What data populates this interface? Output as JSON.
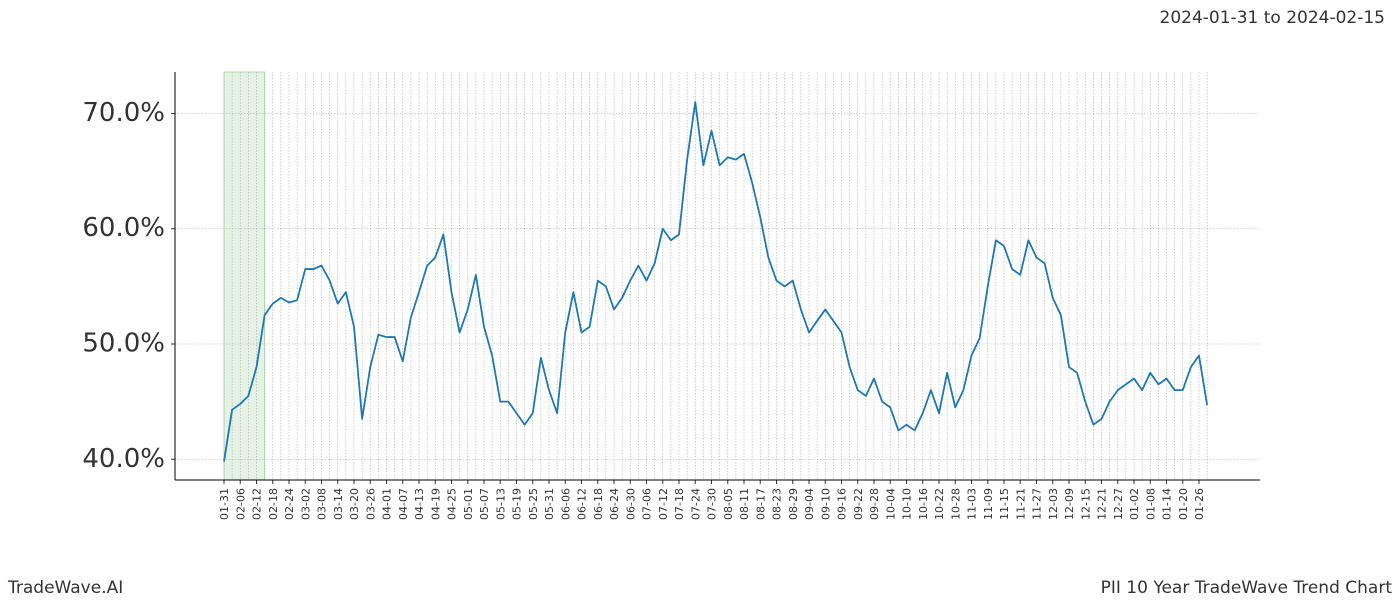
{
  "date_range": "2024-01-31 to 2024-02-15",
  "brand": "TradeWave.AI",
  "chart_title": "PII 10 Year TradeWave Trend Chart",
  "chart_data": {
    "type": "line",
    "categories": [
      "01-31",
      null,
      "02-06",
      null,
      "02-12",
      null,
      "02-18",
      null,
      "02-24",
      null,
      "03-02",
      null,
      "03-08",
      null,
      "03-14",
      null,
      "03-20",
      null,
      "03-26",
      null,
      "04-01",
      null,
      "04-07",
      null,
      "04-13",
      null,
      "04-19",
      null,
      "04-25",
      null,
      "05-01",
      null,
      "05-07",
      null,
      "05-13",
      null,
      "05-19",
      null,
      "05-25",
      null,
      "05-31",
      null,
      "06-06",
      null,
      "06-12",
      null,
      "06-18",
      null,
      "06-24",
      null,
      "06-30",
      null,
      "07-06",
      null,
      "07-12",
      null,
      "07-18",
      null,
      "07-24",
      null,
      "07-30",
      null,
      "08-05",
      null,
      "08-11",
      null,
      "08-17",
      null,
      "08-23",
      null,
      "08-29",
      null,
      "09-04",
      null,
      "09-10",
      null,
      "09-16",
      null,
      "09-22",
      null,
      "09-28",
      null,
      "10-04",
      null,
      "10-10",
      null,
      "10-16",
      null,
      "10-22",
      null,
      "10-28",
      null,
      "11-03",
      null,
      "11-09",
      null,
      "11-15",
      null,
      "11-21",
      null,
      "11-27",
      null,
      "12-03",
      null,
      "12-09",
      null,
      "12-15",
      null,
      "12-21",
      null,
      "12-27",
      null,
      "01-02",
      null,
      "01-08",
      null,
      "01-14",
      null,
      "01-20",
      null,
      "01-26",
      null
    ],
    "series": [
      {
        "color": "#1f77b4",
        "values": [
          39.8,
          44.3,
          44.8,
          45.5,
          48,
          52.5,
          53.5,
          54,
          53.6,
          53.8,
          56.5,
          56.5,
          56.8,
          55.5,
          53.5,
          54.5,
          51.5,
          43.5,
          48,
          50.8,
          50.6,
          50.6,
          48.5,
          52.3,
          54.5,
          56.8,
          57.5,
          59.5,
          54.5,
          51,
          53,
          56,
          51.5,
          49,
          45,
          45,
          44,
          43,
          44,
          48.8,
          46,
          44,
          51,
          54.5,
          51,
          51.5,
          55.5,
          55,
          53,
          54,
          55.5,
          56.8,
          55.5,
          57,
          60,
          59,
          59.5,
          66,
          71,
          65.5,
          68.5,
          65.5,
          66.2,
          66,
          66.5,
          64,
          61,
          57.5,
          55.5,
          55,
          55.5,
          53,
          51,
          52,
          53,
          52,
          51,
          48,
          46,
          45.5,
          47,
          45,
          44.5,
          42.5,
          43,
          42.5,
          44,
          46,
          44,
          47.5,
          44.5,
          46,
          49,
          50.5,
          55,
          59,
          58.5,
          56.5,
          56,
          59,
          57.5,
          57,
          54,
          52.5,
          48,
          47.5,
          45,
          43,
          43.5,
          45,
          46,
          46.5,
          47,
          46,
          47.5,
          46.5,
          47,
          46,
          46,
          48,
          49,
          44.7
        ]
      }
    ],
    "ylim": [
      38.2,
      73.6
    ],
    "yticks": [
      {
        "value": 40,
        "label": "40.0%"
      },
      {
        "value": 50,
        "label": "50.0%"
      },
      {
        "value": 60,
        "label": "60.0%"
      },
      {
        "value": 70,
        "label": "70.0%"
      }
    ],
    "grid": true,
    "highlight": [
      0,
      5
    ],
    "highlight_color": "#2ca02c"
  }
}
